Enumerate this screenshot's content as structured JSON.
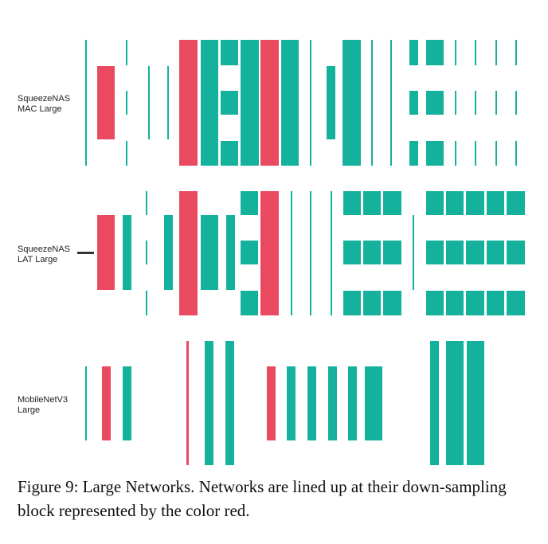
{
  "colors": {
    "down": "#ea4a5f",
    "normal": "#14b29c",
    "ink": "#333333"
  },
  "rows": [
    {
      "id": "squeezenas-mac-large",
      "label": "SqueezeNAS\nMAC Large"
    },
    {
      "id": "squeezenas-lat-large",
      "label": "SqueezeNAS\nLAT Large"
    },
    {
      "id": "mobilenetv3-large",
      "label": "MobileNetV3\nLarge"
    }
  ],
  "caption": "Figure 9: Large Networks. Networks are lined up at their down-sampling block represented by the color red."
}
